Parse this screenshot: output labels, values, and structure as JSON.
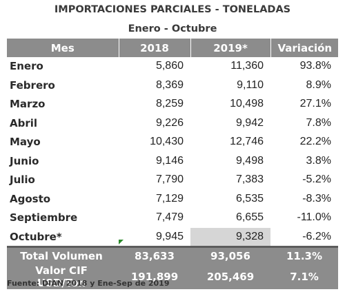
{
  "title": "IMPORTACIONES PARCIALES - TONELADAS",
  "subtitle": "Enero - Octubre",
  "headers": [
    "Mes",
    "2018",
    "2019*",
    "Variación"
  ],
  "rows": [
    {
      "mes": "Enero",
      "y2018": "5,860",
      "y2019": "11,360",
      "var": "93.8%"
    },
    {
      "mes": "Febrero",
      "y2018": "8,369",
      "y2019": "9,110",
      "var": "8.9%"
    },
    {
      "mes": "Marzo",
      "y2018": "8,259",
      "y2019": "10,498",
      "var": "27.1%"
    },
    {
      "mes": "Abril",
      "y2018": "9,226",
      "y2019": "9,942",
      "var": "7.8%"
    },
    {
      "mes": "Mayo",
      "y2018": "10,430",
      "y2019": "12,746",
      "var": "22.2%"
    },
    {
      "mes": "Junio",
      "y2018": "9,146",
      "y2019": "9,498",
      "var": "3.8%"
    },
    {
      "mes": "Julio",
      "y2018": "7,790",
      "y2019": "7,383",
      "var": "-5.2%"
    },
    {
      "mes": "Agosto",
      "y2018": "7,129",
      "y2019": "6,535",
      "var": "-8.3%"
    },
    {
      "mes": "Septiembre",
      "y2018": "7,479",
      "y2019": "6,655",
      "var": "-11.0%"
    },
    {
      "mes": "Octubre*",
      "y2018": "9,945",
      "y2019": "9,328",
      "var": "-6.2%"
    }
  ],
  "totals": [
    {
      "label": "Total Volumen",
      "y2018": "83,633",
      "y2019": "93,056",
      "var": "11.3%"
    },
    {
      "label": "Valor CIF USD/Ton",
      "y2018": "191,899",
      "y2019": "205,469",
      "var": "7.1%"
    }
  ],
  "footnote": "Fuente: DIAN 2018 y Ene-Sep de 2019",
  "colors": {
    "header_bg": "#8c8c8c",
    "highlight_cell": "#d6d6d6",
    "comment_marker": "#2a8a2a"
  }
}
